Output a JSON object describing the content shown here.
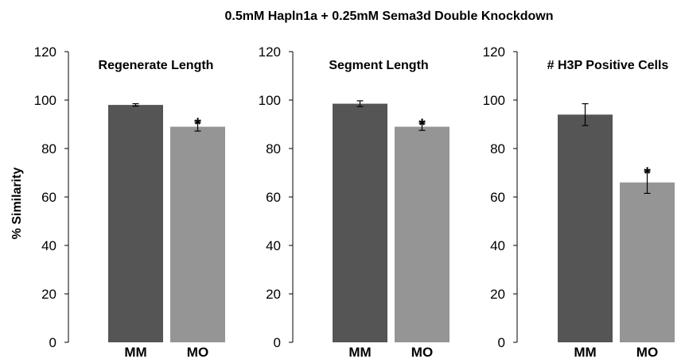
{
  "figure_title": "0.5mM Hapln1a + 0.25mM Sema3d Double Knockdown",
  "ylabel": "% Similarity",
  "colors": {
    "MM": "#555555",
    "MO": "#959595",
    "axis": "#000000"
  },
  "chart_data": [
    {
      "type": "bar",
      "title": "Regenerate Length",
      "ylabel": "% Similarity",
      "categories": [
        "MM",
        "MO"
      ],
      "values": [
        98,
        89
      ],
      "errors": [
        0.5,
        1.8
      ],
      "significance": [
        "",
        "*"
      ],
      "ylim": [
        0,
        120
      ],
      "yticks": [
        0,
        20,
        40,
        60,
        80,
        100,
        120
      ],
      "grid": false
    },
    {
      "type": "bar",
      "title": "Segment Length",
      "categories": [
        "MM",
        "MO"
      ],
      "values": [
        98.5,
        89
      ],
      "errors": [
        1.2,
        1.5
      ],
      "significance": [
        "",
        "*"
      ],
      "ylim": [
        0,
        120
      ],
      "yticks": [
        0,
        20,
        40,
        60,
        80,
        100,
        120
      ],
      "grid": false
    },
    {
      "type": "bar",
      "title": "# H3P Positive Cells",
      "categories": [
        "MM",
        "MO"
      ],
      "values": [
        94,
        66
      ],
      "errors": [
        4.5,
        4.5
      ],
      "significance": [
        "",
        "*"
      ],
      "ylim": [
        0,
        120
      ],
      "yticks": [
        0,
        20,
        40,
        60,
        80,
        100,
        120
      ],
      "grid": false
    }
  ]
}
